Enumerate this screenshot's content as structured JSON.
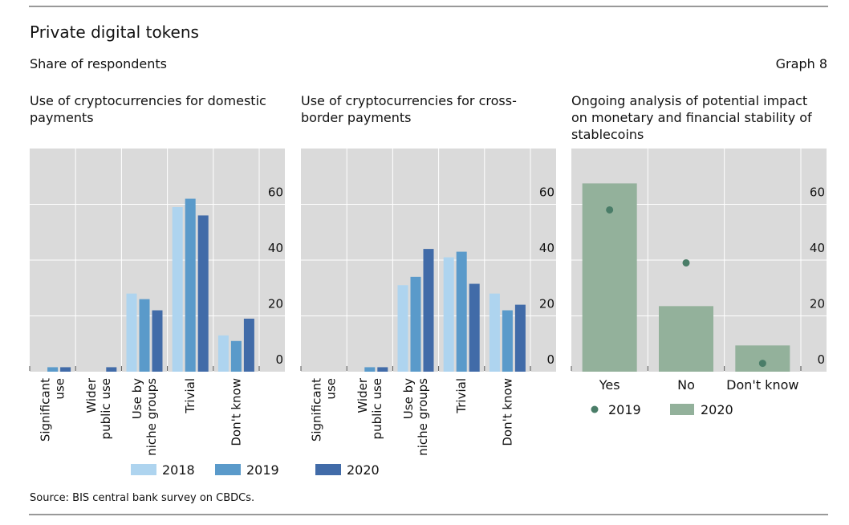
{
  "title": "Private digital tokens",
  "subtitle": "Share of respondents",
  "graph_label": "Graph 8",
  "source": "Source: BIS central bank survey on CBDCs.",
  "colors": {
    "2018": "#aed4ef",
    "2019": "#5a9aca",
    "2020": "#416ba8",
    "bar_green": "#93b19b",
    "dot_green": "#4a7d68",
    "plot_bg": "#dadada"
  },
  "legend_blue": [
    "2018",
    "2019",
    "2020"
  ],
  "legend_green": [
    "2019",
    "2020"
  ],
  "chart_data": [
    {
      "type": "bar",
      "title_lines": [
        "Use of cryptocurrencies for domestic",
        "payments"
      ],
      "categories": [
        [
          "Significant",
          "use"
        ],
        [
          "Wider",
          "public use"
        ],
        [
          "Use by",
          "niche groups"
        ],
        [
          "Trivial"
        ],
        [
          "Don't know"
        ]
      ],
      "ylim": [
        0,
        80
      ],
      "yticks": [
        0,
        20,
        40,
        60
      ],
      "grid": true,
      "legend": "bottom",
      "series": [
        {
          "name": "2018",
          "values": [
            0,
            0,
            28,
            59,
            13
          ]
        },
        {
          "name": "2019",
          "values": [
            1.6,
            0,
            26,
            62,
            11
          ]
        },
        {
          "name": "2020",
          "values": [
            1.6,
            1.6,
            22,
            56,
            19
          ]
        }
      ]
    },
    {
      "type": "bar",
      "title_lines": [
        "Use of cryptocurrencies for cross-",
        "border payments"
      ],
      "categories": [
        [
          "Significant",
          "use"
        ],
        [
          "Wider",
          "public use"
        ],
        [
          "Use by",
          "niche groups"
        ],
        [
          "Trivial"
        ],
        [
          "Don't know"
        ]
      ],
      "ylim": [
        0,
        80
      ],
      "yticks": [
        0,
        20,
        40,
        60
      ],
      "grid": true,
      "legend": "bottom",
      "series": [
        {
          "name": "2018",
          "values": [
            0,
            0,
            31,
            41,
            28
          ]
        },
        {
          "name": "2019",
          "values": [
            0,
            1.6,
            34,
            43,
            22
          ]
        },
        {
          "name": "2020",
          "values": [
            0,
            1.6,
            44,
            31.5,
            24
          ]
        }
      ]
    },
    {
      "type": "bar",
      "title_lines": [
        "Ongoing analysis of potential impact",
        "on monetary and financial stability of",
        "stablecoins"
      ],
      "categories": [
        "Yes",
        "No",
        "Don't know"
      ],
      "ylim": [
        0,
        80
      ],
      "yticks": [
        0,
        20,
        40,
        60
      ],
      "grid": true,
      "legend": "bottom",
      "series": [
        {
          "name": "2019",
          "marker": "dot",
          "values": [
            58,
            39,
            3
          ]
        },
        {
          "name": "2020",
          "marker": "bar",
          "values": [
            67.5,
            23.5,
            9.4
          ]
        }
      ]
    }
  ]
}
